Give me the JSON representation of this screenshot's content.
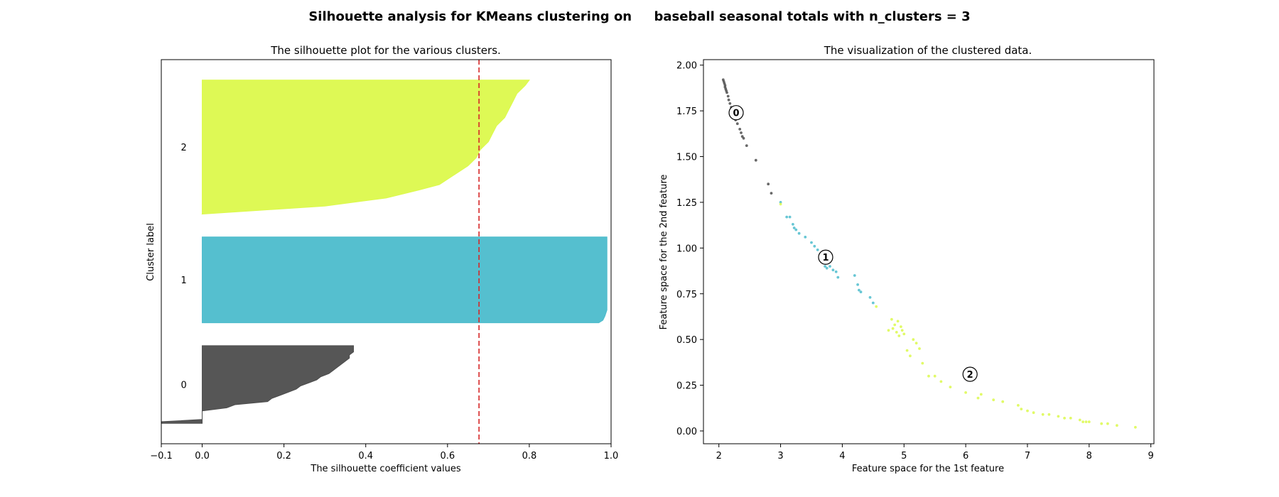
{
  "figure": {
    "title": "Silhouette analysis for KMeans clustering on     baseball seasonal totals with n_clusters = 3"
  },
  "chart_data": [
    {
      "type": "area",
      "title": "The silhouette plot for the various clusters.",
      "xlabel": "The silhouette coefficient values",
      "ylabel": "Cluster label",
      "xlim": [
        -0.1,
        1.0
      ],
      "ylim": [
        0,
        470
      ],
      "xticks": [
        -0.1,
        0.0,
        0.2,
        0.4,
        0.6,
        0.8,
        1.0
      ],
      "xtick_labels": [
        "−0.1",
        "0.0",
        "0.2",
        "0.4",
        "0.6",
        "0.8",
        "1.0"
      ],
      "yticks": [],
      "grid": false,
      "average_silhouette": 0.677,
      "average_line_color": "#d62728",
      "clusters": [
        {
          "label": "0",
          "color": "#4d4d4d",
          "y_lower": 25,
          "y_upper": 120,
          "profile": [
            [
              0.0,
              -0.1
            ],
            [
              0.02,
              -0.1
            ],
            [
              0.05,
              0.0
            ],
            [
              0.09,
              0.0
            ],
            [
              0.12,
              0.0
            ],
            [
              0.16,
              0.0
            ],
            [
              0.2,
              0.06
            ],
            [
              0.24,
              0.08
            ],
            [
              0.28,
              0.16
            ],
            [
              0.32,
              0.17
            ],
            [
              0.36,
              0.19
            ],
            [
              0.4,
              0.21
            ],
            [
              0.44,
              0.23
            ],
            [
              0.48,
              0.24
            ],
            [
              0.52,
              0.26
            ],
            [
              0.56,
              0.28
            ],
            [
              0.6,
              0.29
            ],
            [
              0.64,
              0.31
            ],
            [
              0.68,
              0.32
            ],
            [
              0.72,
              0.33
            ],
            [
              0.76,
              0.34
            ],
            [
              0.8,
              0.35
            ],
            [
              0.84,
              0.36
            ],
            [
              0.88,
              0.36
            ],
            [
              0.92,
              0.37
            ],
            [
              0.96,
              0.37
            ],
            [
              1.0,
              0.37
            ]
          ]
        },
        {
          "label": "1",
          "color": "#4cbccc",
          "y_lower": 148,
          "y_upper": 253,
          "profile": [
            [
              0.0,
              0.97
            ],
            [
              0.03,
              0.98
            ],
            [
              0.08,
              0.985
            ],
            [
              0.15,
              0.99
            ],
            [
              0.3,
              0.99
            ],
            [
              0.5,
              0.99
            ],
            [
              0.7,
              0.99
            ],
            [
              0.9,
              0.99
            ],
            [
              1.0,
              0.99
            ]
          ]
        },
        {
          "label": "2",
          "color": "#dcf94c",
          "y_lower": 281,
          "y_upper": 445,
          "profile": [
            [
              0.0,
              0.0
            ],
            [
              0.06,
              0.3
            ],
            [
              0.12,
              0.45
            ],
            [
              0.18,
              0.53
            ],
            [
              0.22,
              0.58
            ],
            [
              0.26,
              0.6
            ],
            [
              0.3,
              0.62
            ],
            [
              0.36,
              0.65
            ],
            [
              0.42,
              0.67
            ],
            [
              0.48,
              0.68
            ],
            [
              0.54,
              0.7
            ],
            [
              0.6,
              0.71
            ],
            [
              0.66,
              0.72
            ],
            [
              0.72,
              0.74
            ],
            [
              0.78,
              0.75
            ],
            [
              0.84,
              0.76
            ],
            [
              0.9,
              0.77
            ],
            [
              0.96,
              0.79
            ],
            [
              1.0,
              0.8
            ]
          ]
        }
      ]
    },
    {
      "type": "scatter",
      "title": "The visualization of the clustered data.",
      "xlabel": "Feature space for the 1st feature",
      "ylabel": "Feature space for the 2nd feature",
      "xlim": [
        1.75,
        9.05
      ],
      "ylim": [
        -0.07,
        2.03
      ],
      "xticks": [
        2,
        3,
        4,
        5,
        6,
        7,
        8,
        9
      ],
      "xtick_labels": [
        "2",
        "3",
        "4",
        "5",
        "6",
        "7",
        "8",
        "9"
      ],
      "yticks": [
        0.0,
        0.25,
        0.5,
        0.75,
        1.0,
        1.25,
        1.5,
        1.75,
        2.0
      ],
      "ytick_labels": [
        "0.00",
        "0.25",
        "0.50",
        "0.75",
        "1.00",
        "1.25",
        "1.50",
        "1.75",
        "2.00"
      ],
      "grid": false,
      "series": [
        {
          "color": "#4d4d4d",
          "points": [
            [
              2.07,
              1.92
            ],
            [
              2.08,
              1.91
            ],
            [
              2.09,
              1.9
            ],
            [
              2.1,
              1.89
            ],
            [
              2.1,
              1.88
            ],
            [
              2.11,
              1.87
            ],
            [
              2.12,
              1.86
            ],
            [
              2.13,
              1.85
            ],
            [
              2.15,
              1.83
            ],
            [
              2.16,
              1.81
            ],
            [
              2.18,
              1.79
            ],
            [
              2.2,
              1.77
            ],
            [
              2.22,
              1.74
            ],
            [
              2.27,
              1.7
            ],
            [
              2.3,
              1.68
            ],
            [
              2.34,
              1.65
            ],
            [
              2.36,
              1.63
            ],
            [
              2.38,
              1.61
            ],
            [
              2.4,
              1.6
            ],
            [
              2.45,
              1.56
            ],
            [
              2.6,
              1.48
            ],
            [
              2.8,
              1.35
            ],
            [
              2.85,
              1.3
            ]
          ]
        },
        {
          "color": "#4cbccc",
          "points": [
            [
              3.0,
              1.25
            ],
            [
              3.1,
              1.17
            ],
            [
              3.15,
              1.17
            ],
            [
              3.2,
              1.13
            ],
            [
              3.22,
              1.11
            ],
            [
              3.25,
              1.1
            ],
            [
              3.3,
              1.08
            ],
            [
              3.4,
              1.06
            ],
            [
              3.5,
              1.03
            ],
            [
              3.55,
              1.01
            ],
            [
              3.6,
              0.99
            ],
            [
              3.65,
              0.96
            ],
            [
              3.7,
              0.93
            ],
            [
              3.72,
              0.9
            ],
            [
              3.75,
              0.89
            ],
            [
              3.8,
              0.9
            ],
            [
              3.85,
              0.88
            ],
            [
              3.9,
              0.87
            ],
            [
              3.93,
              0.84
            ],
            [
              4.2,
              0.85
            ],
            [
              4.25,
              0.8
            ],
            [
              4.27,
              0.77
            ],
            [
              4.3,
              0.76
            ],
            [
              4.45,
              0.73
            ],
            [
              4.5,
              0.7
            ]
          ]
        },
        {
          "color": "#dcf94c",
          "points": [
            [
              3.0,
              1.24
            ],
            [
              4.55,
              0.68
            ],
            [
              4.75,
              0.55
            ],
            [
              4.8,
              0.61
            ],
            [
              4.82,
              0.56
            ],
            [
              4.85,
              0.58
            ],
            [
              4.88,
              0.54
            ],
            [
              4.9,
              0.6
            ],
            [
              4.92,
              0.52
            ],
            [
              4.95,
              0.57
            ],
            [
              4.97,
              0.55
            ],
            [
              5.0,
              0.53
            ],
            [
              5.05,
              0.44
            ],
            [
              5.1,
              0.41
            ],
            [
              5.15,
              0.5
            ],
            [
              5.2,
              0.48
            ],
            [
              5.25,
              0.45
            ],
            [
              5.3,
              0.37
            ],
            [
              5.4,
              0.3
            ],
            [
              5.5,
              0.3
            ],
            [
              5.6,
              0.27
            ],
            [
              5.75,
              0.24
            ],
            [
              6.0,
              0.21
            ],
            [
              6.2,
              0.18
            ],
            [
              6.25,
              0.2
            ],
            [
              6.45,
              0.17
            ],
            [
              6.6,
              0.16
            ],
            [
              6.85,
              0.14
            ],
            [
              6.9,
              0.12
            ],
            [
              7.0,
              0.11
            ],
            [
              7.1,
              0.1
            ],
            [
              7.25,
              0.09
            ],
            [
              7.35,
              0.09
            ],
            [
              7.5,
              0.08
            ],
            [
              7.6,
              0.07
            ],
            [
              7.7,
              0.07
            ],
            [
              7.85,
              0.06
            ],
            [
              7.9,
              0.05
            ],
            [
              7.95,
              0.05
            ],
            [
              8.0,
              0.05
            ],
            [
              8.2,
              0.04
            ],
            [
              8.3,
              0.04
            ],
            [
              8.45,
              0.03
            ],
            [
              8.75,
              0.02
            ]
          ]
        }
      ],
      "centers": [
        {
          "label": "0",
          "x": 2.28,
          "y": 1.74
        },
        {
          "label": "1",
          "x": 3.73,
          "y": 0.95
        },
        {
          "label": "2",
          "x": 6.07,
          "y": 0.31
        }
      ]
    }
  ]
}
